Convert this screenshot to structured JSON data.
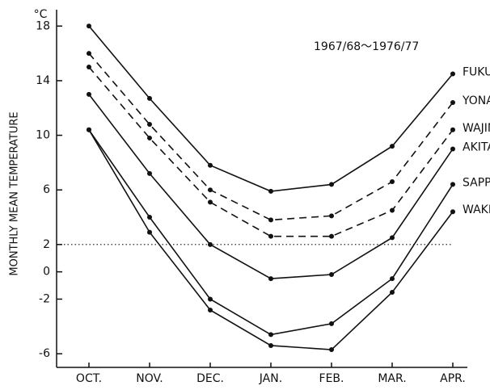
{
  "chart_data": {
    "type": "line",
    "unit": "°C",
    "y_label": "MONTHLY MEAN TEMPERATURE",
    "annotation": "1967/68〜1976/77",
    "categories": [
      "OCT.",
      "NOV.",
      "DEC.",
      "JAN.",
      "FEB.",
      "MAR.",
      "APR."
    ],
    "ylim": [
      -7,
      19.2
    ],
    "yticks": [
      18,
      14,
      10,
      6,
      2,
      0,
      -2,
      -6
    ],
    "reference_line": 2,
    "series": [
      {
        "name": "FUKUOKA",
        "color": "#111111",
        "dashed": false,
        "values": [
          18,
          12.7,
          7.8,
          5.9,
          6.4,
          9.2,
          14.5
        ]
      },
      {
        "name": "YONAGO",
        "color": "#111111",
        "dashed": true,
        "values": [
          16,
          10.8,
          6,
          3.8,
          4.1,
          6.6,
          12.4
        ]
      },
      {
        "name": "WAJIMA",
        "color": "#111111",
        "dashed": true,
        "values": [
          15,
          9.8,
          5.1,
          2.6,
          2.6,
          4.5,
          10.4
        ]
      },
      {
        "name": "AKITA",
        "color": "#111111",
        "dashed": false,
        "values": [
          13,
          7.2,
          2,
          -0.5,
          -0.2,
          2.5,
          9
        ]
      },
      {
        "name": "SAPPORO",
        "color": "#111111",
        "dashed": false,
        "values": [
          10.4,
          4,
          -2,
          -4.6,
          -3.8,
          -0.5,
          6.4
        ]
      },
      {
        "name": "WAKKANAI",
        "color": "#111111",
        "dashed": false,
        "values": [
          10.4,
          2.9,
          -2.8,
          -5.4,
          -5.7,
          -1.5,
          4.4
        ]
      }
    ]
  }
}
